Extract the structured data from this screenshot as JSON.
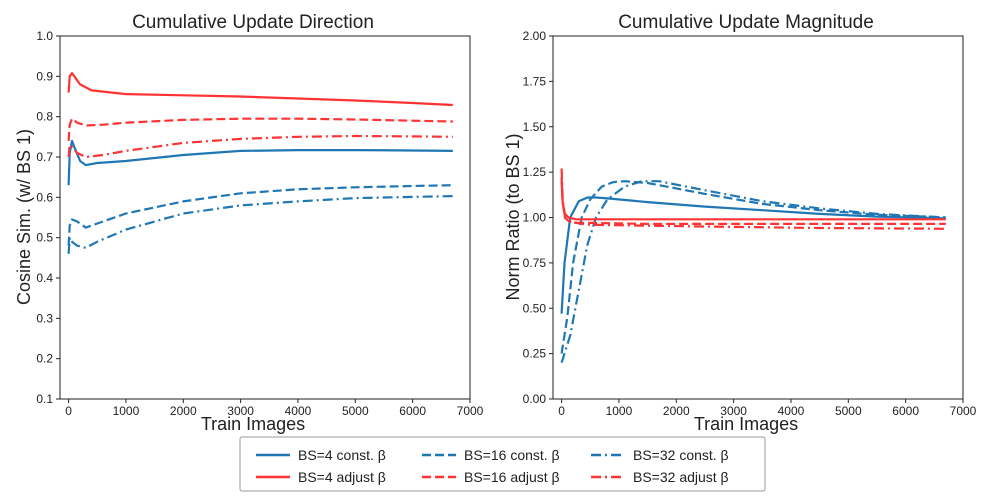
{
  "chart_data": [
    {
      "type": "line",
      "title": "Cumulative Update Direction",
      "xlabel": "Train Images",
      "ylabel": "Cosine Sim. (w/ BS 1)",
      "xlim": [
        -150,
        7000
      ],
      "ylim": [
        0.1,
        1.0
      ],
      "xticks": [
        "0",
        "1000",
        "2000",
        "3000",
        "4000",
        "5000",
        "6000",
        "7000"
      ],
      "yticks": [
        "0.1",
        "0.2",
        "0.3",
        "0.4",
        "0.5",
        "0.6",
        "0.7",
        "0.8",
        "0.9",
        "1.0"
      ],
      "series": [
        {
          "name": "BS=4 const. β",
          "color": "#1f77b4",
          "dash": "solid",
          "x": [
            0,
            20,
            60,
            100,
            200,
            300,
            500,
            1000,
            2000,
            3000,
            4000,
            5000,
            6000,
            6700
          ],
          "y": [
            0.63,
            0.71,
            0.74,
            0.725,
            0.69,
            0.68,
            0.685,
            0.69,
            0.705,
            0.715,
            0.717,
            0.717,
            0.716,
            0.715
          ]
        },
        {
          "name": "BS=16 const. β",
          "color": "#1f77b4",
          "dash": "dashed",
          "x": [
            0,
            20,
            60,
            150,
            300,
            500,
            1000,
            2000,
            3000,
            4000,
            5000,
            6000,
            6700
          ],
          "y": [
            0.48,
            0.53,
            0.545,
            0.54,
            0.525,
            0.535,
            0.56,
            0.59,
            0.61,
            0.62,
            0.625,
            0.628,
            0.63
          ]
        },
        {
          "name": "BS=32 const. β",
          "color": "#1f77b4",
          "dash": "dashdot",
          "x": [
            0,
            20,
            60,
            150,
            300,
            500,
            1000,
            2000,
            3000,
            4000,
            5000,
            6000,
            6700
          ],
          "y": [
            0.46,
            0.5,
            0.49,
            0.48,
            0.475,
            0.49,
            0.52,
            0.56,
            0.58,
            0.59,
            0.598,
            0.601,
            0.603
          ]
        },
        {
          "name": "BS=4 adjust β",
          "color": "#ff3333",
          "dash": "solid",
          "x": [
            0,
            20,
            60,
            100,
            200,
            400,
            1000,
            2000,
            3000,
            4000,
            5000,
            6000,
            6700
          ],
          "y": [
            0.86,
            0.9,
            0.908,
            0.9,
            0.88,
            0.865,
            0.856,
            0.853,
            0.85,
            0.845,
            0.84,
            0.834,
            0.829
          ]
        },
        {
          "name": "BS=16 adjust β",
          "color": "#ff3333",
          "dash": "dashed",
          "x": [
            0,
            20,
            60,
            150,
            300,
            600,
            1000,
            2000,
            3000,
            4000,
            5000,
            6000,
            6700
          ],
          "y": [
            0.74,
            0.78,
            0.795,
            0.785,
            0.778,
            0.78,
            0.785,
            0.792,
            0.795,
            0.795,
            0.793,
            0.79,
            0.788
          ]
        },
        {
          "name": "BS=32 adjust β",
          "color": "#ff3333",
          "dash": "dashdot",
          "x": [
            0,
            20,
            60,
            150,
            300,
            600,
            1000,
            2000,
            3000,
            4000,
            5000,
            6000,
            6700
          ],
          "y": [
            0.7,
            0.73,
            0.725,
            0.71,
            0.7,
            0.705,
            0.715,
            0.735,
            0.745,
            0.75,
            0.752,
            0.751,
            0.75
          ]
        }
      ]
    },
    {
      "type": "line",
      "title": "Cumulative Update Magnitude",
      "xlabel": "Train Images",
      "ylabel": "Norm Ratio (to BS 1)",
      "xlim": [
        -150,
        7000
      ],
      "ylim": [
        0.0,
        2.0
      ],
      "xticks": [
        "0",
        "1000",
        "2000",
        "3000",
        "4000",
        "5000",
        "6000",
        "7000"
      ],
      "yticks": [
        "0.00",
        "0.25",
        "0.50",
        "0.75",
        "1.00",
        "1.25",
        "1.50",
        "1.75",
        "2.00"
      ],
      "series": [
        {
          "name": "BS=4 const. β",
          "color": "#1f77b4",
          "dash": "solid",
          "x": [
            0,
            50,
            150,
            300,
            450,
            600,
            800,
            1500,
            2500,
            3500,
            4500,
            5500,
            6700
          ],
          "y": [
            0.47,
            0.75,
            1.0,
            1.09,
            1.11,
            1.11,
            1.105,
            1.085,
            1.06,
            1.04,
            1.02,
            1.005,
            0.995
          ]
        },
        {
          "name": "BS=16 const. β",
          "color": "#1f77b4",
          "dash": "dashed",
          "x": [
            0,
            100,
            200,
            350,
            500,
            700,
            900,
            1100,
            1500,
            2500,
            3500,
            4500,
            5500,
            6700
          ],
          "y": [
            0.25,
            0.45,
            0.75,
            1.0,
            1.1,
            1.17,
            1.195,
            1.2,
            1.19,
            1.13,
            1.075,
            1.04,
            1.015,
            1.0
          ]
        },
        {
          "name": "BS=32 const. β",
          "color": "#1f77b4",
          "dash": "dashdot",
          "x": [
            0,
            150,
            300,
            450,
            600,
            800,
            1100,
            1400,
            1700,
            2500,
            3500,
            4500,
            5500,
            6700
          ],
          "y": [
            0.2,
            0.35,
            0.6,
            0.85,
            1.0,
            1.1,
            1.17,
            1.2,
            1.2,
            1.15,
            1.09,
            1.05,
            1.02,
            1.0
          ]
        },
        {
          "name": "BS=4 adjust β",
          "color": "#ff3333",
          "dash": "solid",
          "x": [
            0,
            20,
            60,
            120,
            250,
            500,
            1500,
            3000,
            4500,
            6700
          ],
          "y": [
            1.2,
            1.08,
            1.02,
            1.0,
            0.99,
            0.99,
            0.99,
            0.99,
            0.99,
            0.99
          ]
        },
        {
          "name": "BS=16 adjust β",
          "color": "#ff3333",
          "dash": "dashed",
          "x": [
            0,
            20,
            60,
            120,
            250,
            500,
            1500,
            3000,
            4500,
            6700
          ],
          "y": [
            1.22,
            1.08,
            1.0,
            0.98,
            0.97,
            0.97,
            0.965,
            0.965,
            0.965,
            0.965
          ]
        },
        {
          "name": "BS=32 adjust β",
          "color": "#ff3333",
          "dash": "dashdot",
          "x": [
            0,
            20,
            60,
            120,
            250,
            500,
            1500,
            3000,
            4500,
            6700
          ],
          "y": [
            1.27,
            1.1,
            1.0,
            0.98,
            0.97,
            0.96,
            0.955,
            0.948,
            0.942,
            0.938
          ]
        }
      ]
    }
  ],
  "legend": {
    "items": [
      {
        "label": "BS=4 const. β",
        "color": "#1f77b4",
        "dash": "solid"
      },
      {
        "label": "BS=16 const. β",
        "color": "#1f77b4",
        "dash": "dashed"
      },
      {
        "label": "BS=32 const. β",
        "color": "#1f77b4",
        "dash": "dashdot"
      },
      {
        "label": "BS=4 adjust β",
        "color": "#ff3333",
        "dash": "solid"
      },
      {
        "label": "BS=16 adjust β",
        "color": "#ff3333",
        "dash": "dashed"
      },
      {
        "label": "BS=32 adjust β",
        "color": "#ff3333",
        "dash": "dashdot"
      }
    ]
  }
}
